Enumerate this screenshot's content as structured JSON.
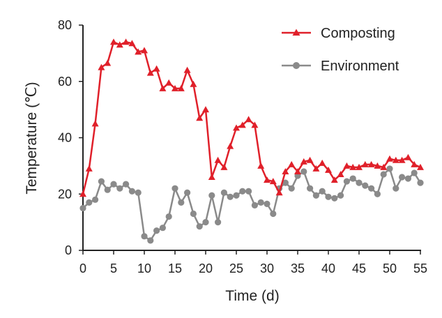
{
  "chart_data": {
    "type": "line",
    "title": "",
    "xlabel": "Time (d)",
    "ylabel": "Temperature (℃)",
    "xlim": [
      0,
      55
    ],
    "ylim": [
      0,
      80
    ],
    "xticks": [
      0,
      5,
      10,
      15,
      20,
      25,
      30,
      35,
      40,
      45,
      50,
      55
    ],
    "yticks": [
      0,
      20,
      40,
      60,
      80
    ],
    "grid": false,
    "legend_position": "top-right",
    "x": [
      0,
      1,
      2,
      3,
      4,
      5,
      6,
      7,
      8,
      9,
      10,
      11,
      12,
      13,
      14,
      15,
      16,
      17,
      18,
      19,
      20,
      21,
      22,
      23,
      24,
      25,
      26,
      27,
      28,
      29,
      30,
      31,
      32,
      33,
      34,
      35,
      36,
      37,
      38,
      39,
      40,
      41,
      42,
      43,
      44,
      45,
      46,
      47,
      48,
      49,
      50,
      51,
      52,
      53,
      54,
      55
    ],
    "series": [
      {
        "name": "Composting",
        "color": "#e0202a",
        "marker": "triangle",
        "values": [
          20,
          29,
          45,
          65,
          66.5,
          74,
          73,
          74,
          73.5,
          70.5,
          71,
          63,
          64.5,
          57.5,
          59.5,
          57.5,
          57.5,
          64,
          59,
          47,
          50,
          26,
          32,
          29.5,
          37,
          43.5,
          44.5,
          46.5,
          44.5,
          30,
          25,
          24.5,
          20.5,
          28,
          30.5,
          28,
          31.5,
          32,
          29,
          31,
          28.5,
          25,
          27,
          30,
          29.5,
          29.5,
          30.5,
          30.5,
          30,
          29.5,
          32.5,
          32,
          32,
          33,
          30.5,
          29.5
        ]
      },
      {
        "name": "Environment",
        "color": "#8a8a8a",
        "marker": "circle",
        "values": [
          15,
          17,
          18,
          24.5,
          21.5,
          23.5,
          22,
          23.5,
          21,
          20.5,
          5,
          3.5,
          7,
          8,
          12,
          22,
          17,
          20.5,
          13,
          8.5,
          10,
          19.5,
          10,
          20.5,
          19,
          19.5,
          21,
          21,
          16,
          17,
          16.5,
          13,
          22,
          24,
          22,
          26.5,
          28,
          22,
          19.5,
          21,
          19,
          18.5,
          19.5,
          24.5,
          25.5,
          24,
          23,
          22,
          20,
          27,
          29,
          22,
          26,
          25.5,
          27.5,
          24
        ]
      }
    ]
  }
}
